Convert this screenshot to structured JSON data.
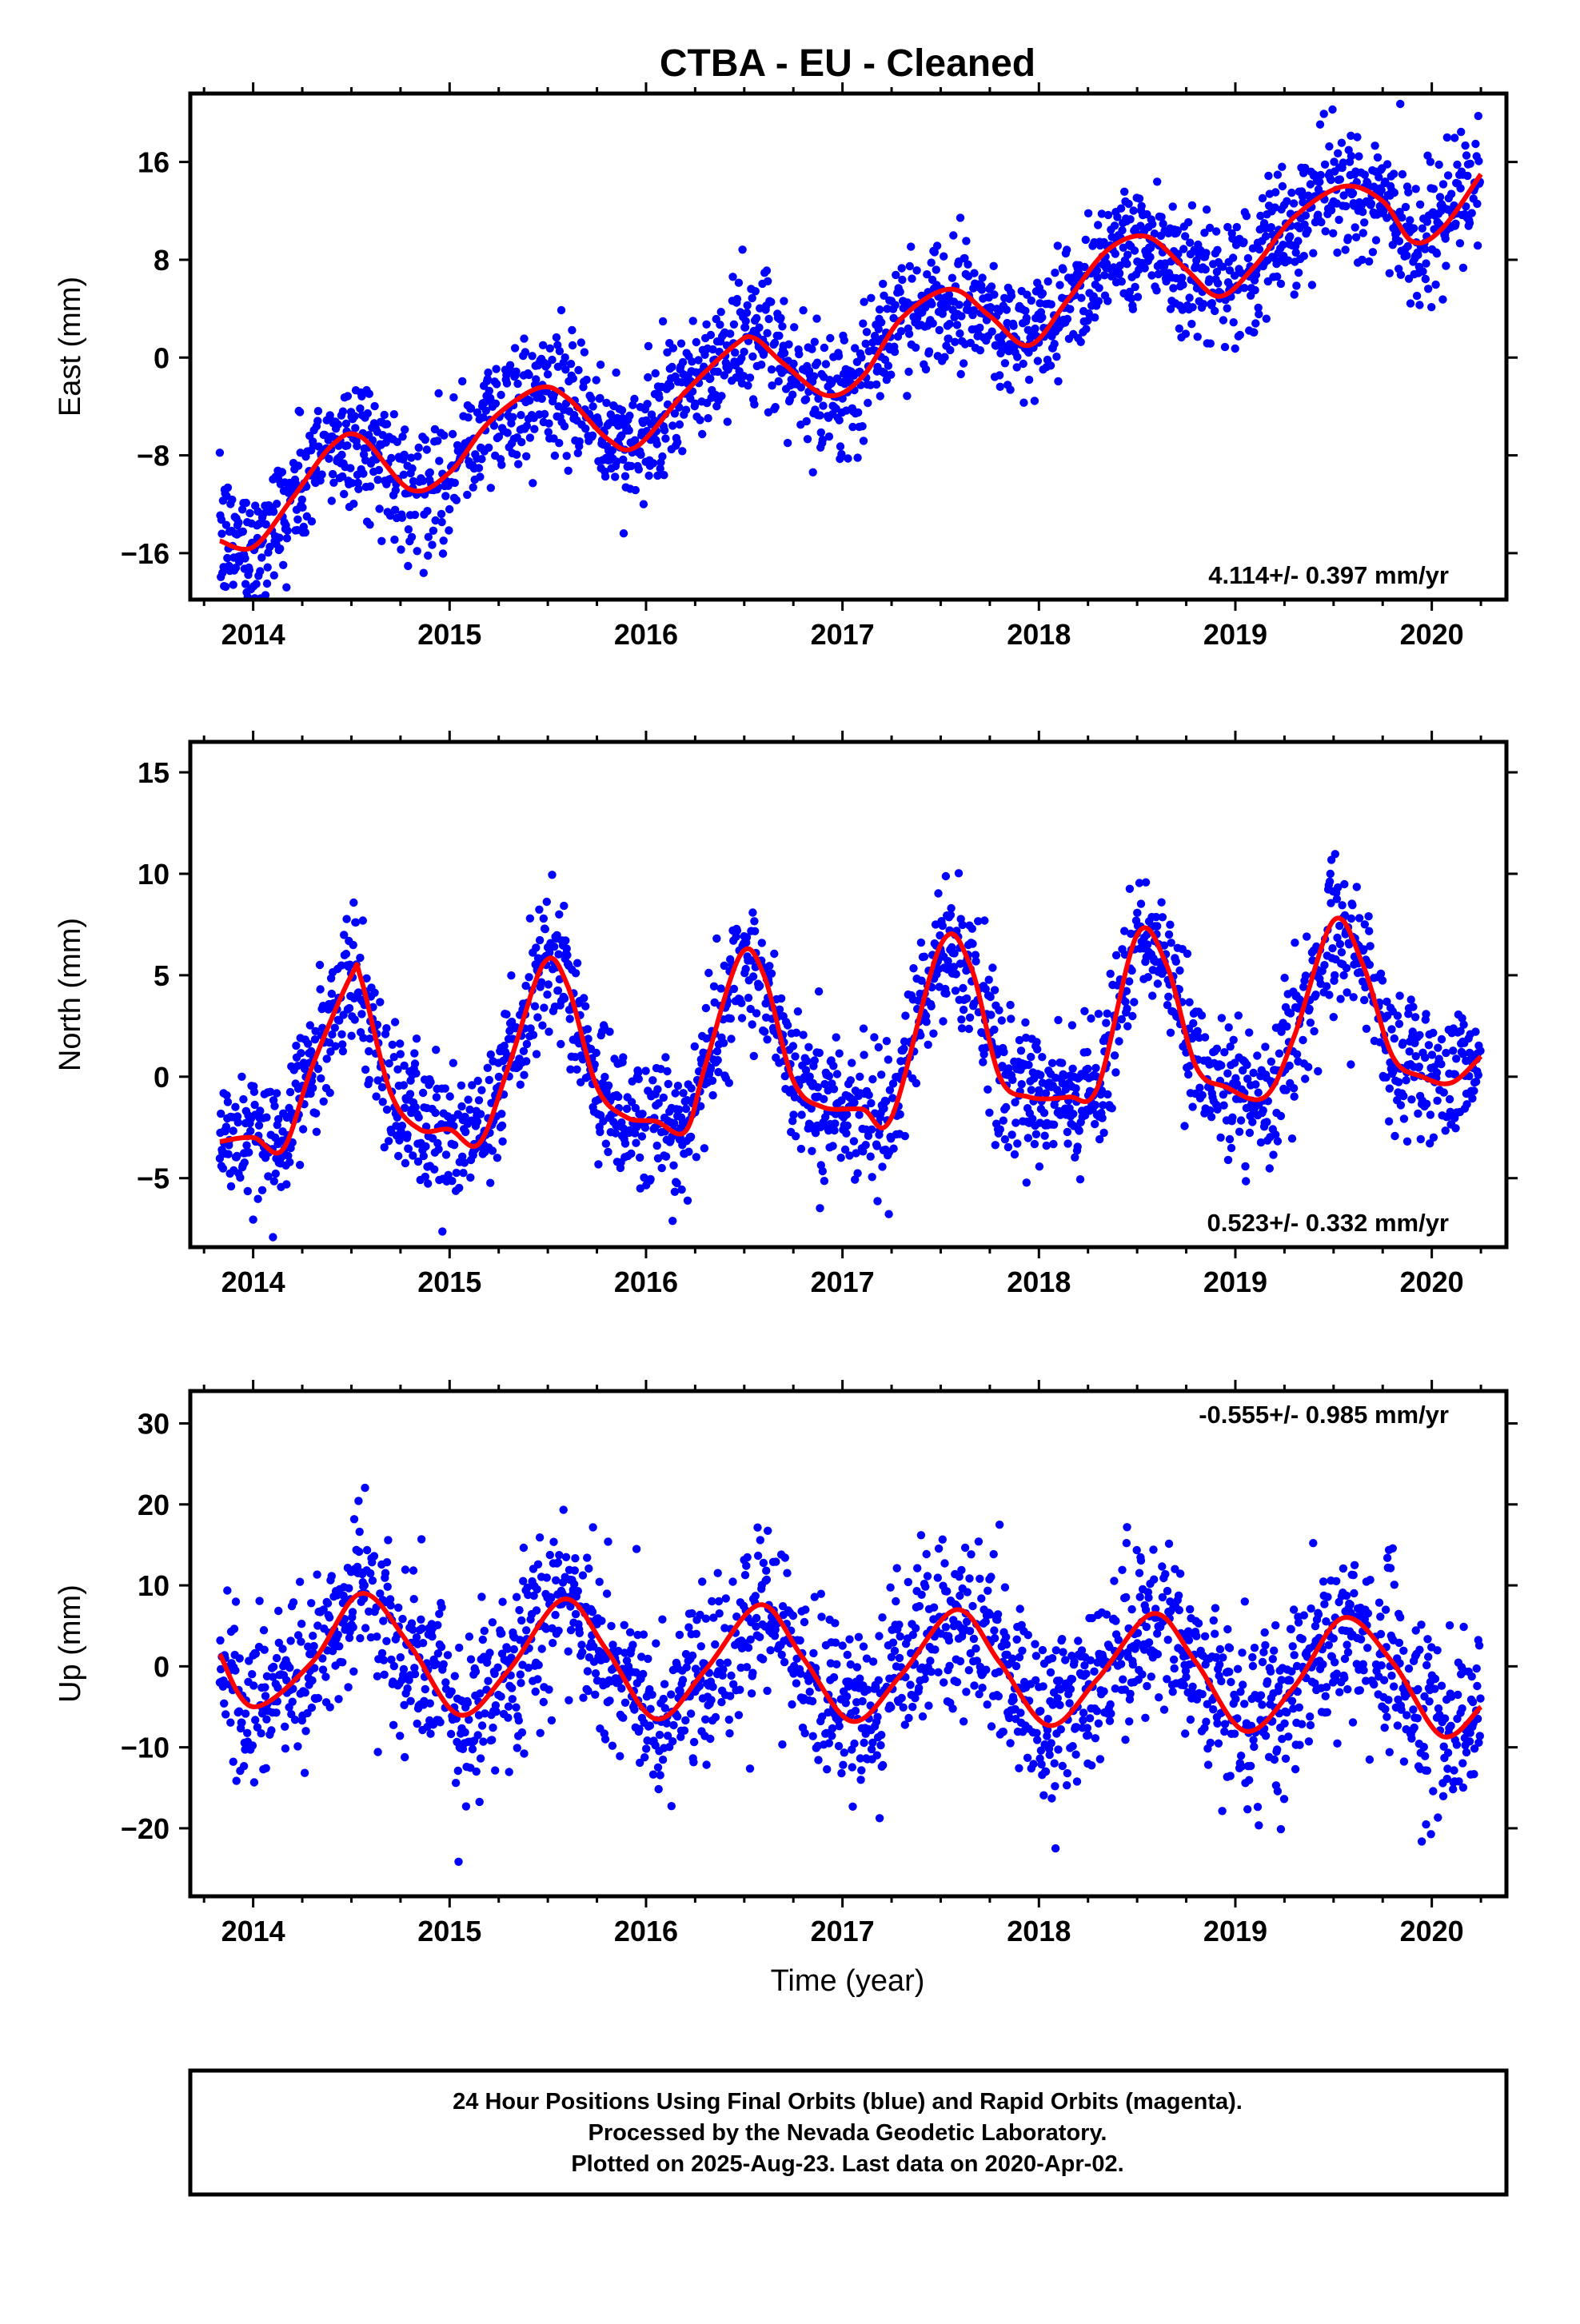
{
  "title": "CTBA  - EU - Cleaned",
  "xlabel": "Time (year)",
  "colors": {
    "points": "#0000ff",
    "fit": "#ff0000",
    "frame": "#000000",
    "background": "#ffffff"
  },
  "footer": {
    "lines": [
      "24 Hour Positions Using Final Orbits (blue) and Rapid Orbits (magenta).",
      "Processed by the Nevada Geodetic Laboratory.",
      "Plotted on 2025-Aug-23. Last data on 2020-Apr-02."
    ]
  },
  "chart_data": [
    {
      "type": "scatter",
      "component": "East",
      "ylabel": "East (mm)",
      "xlim": [
        2013.68,
        2020.38
      ],
      "ylim": [
        -19.8,
        21.6
      ],
      "x_ticks": [
        2014,
        2015,
        2016,
        2017,
        2018,
        2019,
        2020
      ],
      "y_ticks": [
        -16,
        -8,
        0,
        8,
        16
      ],
      "y_tick_labels": [
        "−16",
        "−8",
        "0",
        "8",
        "16"
      ],
      "rate_label": "4.114+/- 0.397 mm/yr",
      "rate_position": "bottom-right",
      "grid": false,
      "legend": "none",
      "series": [
        {
          "kind": "points",
          "color": "#0000ff",
          "x_range": [
            2013.83,
            2020.25
          ]
        },
        {
          "kind": "line",
          "color": "#ff0000",
          "x": [
            2013.83,
            2014.0,
            2014.2,
            2014.4,
            2014.55,
            2014.8,
            2015.0,
            2015.2,
            2015.45,
            2015.6,
            2015.8,
            2015.95,
            2016.2,
            2016.45,
            2016.55,
            2016.7,
            2016.92,
            2017.1,
            2017.3,
            2017.55,
            2017.75,
            2017.95,
            2018.15,
            2018.35,
            2018.55,
            2018.75,
            2018.92,
            2019.1,
            2019.3,
            2019.55,
            2019.75,
            2019.9,
            2020.05,
            2020.25
          ],
          "y": [
            -15.0,
            -15.5,
            -11.5,
            -7.2,
            -6.5,
            -10.8,
            -9.4,
            -5.3,
            -2.5,
            -3.3,
            -6.6,
            -7.3,
            -2.8,
            1.0,
            1.6,
            -0.5,
            -3.1,
            -1.6,
            3.2,
            5.6,
            3.4,
            1.0,
            4.8,
            8.8,
            9.9,
            7.2,
            5.0,
            7.5,
            11.5,
            14.0,
            12.8,
            9.5,
            10.5,
            15.0
          ]
        }
      ]
    },
    {
      "type": "scatter",
      "component": "North",
      "ylabel": "North (mm)",
      "xlim": [
        2013.68,
        2020.38
      ],
      "ylim": [
        -8.4,
        16.5
      ],
      "x_ticks": [
        2014,
        2015,
        2016,
        2017,
        2018,
        2019,
        2020
      ],
      "y_ticks": [
        -5,
        0,
        5,
        10,
        15
      ],
      "y_tick_labels": [
        "−5",
        "0",
        "5",
        "10",
        "15"
      ],
      "rate_label": "0.523+/- 0.332 mm/yr",
      "rate_position": "bottom-right",
      "grid": false,
      "legend": "none",
      "series": [
        {
          "kind": "points",
          "color": "#0000ff",
          "x_range": [
            2013.83,
            2020.25
          ]
        },
        {
          "kind": "line",
          "color": "#ff0000",
          "x": [
            2013.83,
            2014.0,
            2014.15,
            2014.3,
            2014.5,
            2014.55,
            2014.7,
            2014.85,
            2015.0,
            2015.15,
            2015.3,
            2015.48,
            2015.6,
            2015.75,
            2015.9,
            2016.05,
            2016.2,
            2016.3,
            2016.48,
            2016.6,
            2016.75,
            2016.9,
            2017.1,
            2017.25,
            2017.5,
            2017.65,
            2017.8,
            2017.95,
            2018.15,
            2018.3,
            2018.5,
            2018.65,
            2018.8,
            2018.95,
            2019.15,
            2019.3,
            2019.5,
            2019.65,
            2019.8,
            2019.95,
            2020.1,
            2020.25
          ],
          "y": [
            -3.2,
            -3.0,
            -3.6,
            0.5,
            5.0,
            4.8,
            -0.8,
            -2.6,
            -2.6,
            -3.3,
            0.5,
            5.6,
            4.5,
            -0.5,
            -2.0,
            -2.2,
            -2.7,
            0.5,
            6.0,
            5.0,
            -0.2,
            -1.5,
            -1.6,
            -2.0,
            6.5,
            5.5,
            0.0,
            -1.0,
            -1.0,
            -0.5,
            7.0,
            5.5,
            0.5,
            -0.5,
            -1.0,
            2.0,
            7.7,
            5.5,
            1.0,
            0.0,
            -0.3,
            1.0
          ]
        }
      ]
    },
    {
      "type": "scatter",
      "component": "Up",
      "ylabel": "Up (mm)",
      "xlim": [
        2013.68,
        2020.38
      ],
      "ylim": [
        -28.4,
        34.0
      ],
      "x_ticks": [
        2014,
        2015,
        2016,
        2017,
        2018,
        2019,
        2020
      ],
      "y_ticks": [
        -20,
        -10,
        0,
        10,
        20,
        30
      ],
      "y_tick_labels": [
        "−20",
        "−10",
        "0",
        "10",
        "20",
        "30"
      ],
      "rate_label": "-0.555+/- 0.985 mm/yr",
      "rate_position": "top-right",
      "grid": false,
      "legend": "none",
      "series": [
        {
          "kind": "points",
          "color": "#0000ff",
          "x_range": [
            2013.83,
            2020.25
          ]
        },
        {
          "kind": "line",
          "color": "#ff0000",
          "x": [
            2013.83,
            2014.0,
            2014.3,
            2014.55,
            2014.8,
            2015.05,
            2015.3,
            2015.58,
            2015.8,
            2016.05,
            2016.3,
            2016.58,
            2016.8,
            2017.05,
            2017.3,
            2017.58,
            2017.8,
            2018.05,
            2018.3,
            2018.58,
            2018.8,
            2019.05,
            2019.3,
            2019.55,
            2019.8,
            2020.05,
            2020.25
          ],
          "y": [
            1.5,
            -5.0,
            0.5,
            9.0,
            2.5,
            -6.0,
            -0.5,
            8.3,
            2.0,
            -6.5,
            -0.5,
            7.6,
            1.0,
            -6.8,
            -1.0,
            7.0,
            0.5,
            -7.3,
            -1.5,
            6.5,
            0.5,
            -8.0,
            -2.5,
            6.0,
            0.5,
            -8.6,
            -5.0
          ]
        }
      ]
    }
  ]
}
